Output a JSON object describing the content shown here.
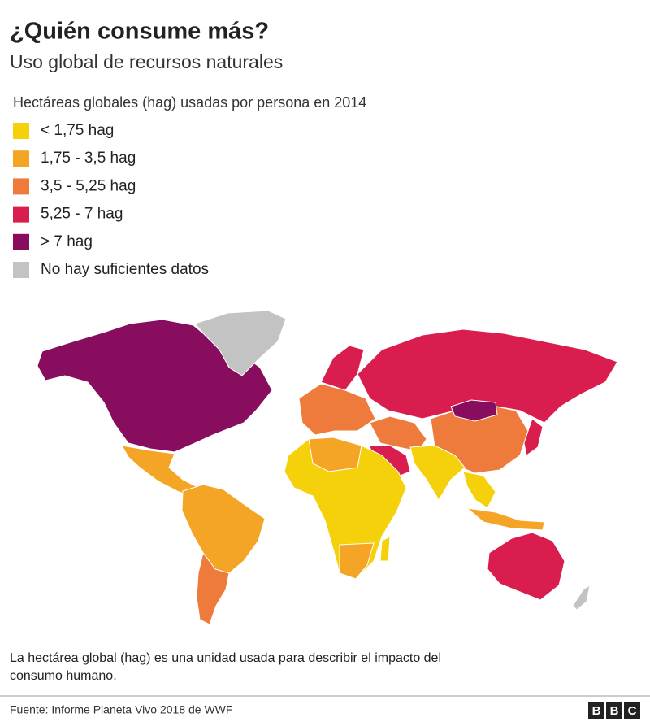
{
  "header": {
    "title": "¿Quién consume más?",
    "subtitle": "Uso global de recursos naturales"
  },
  "legend": {
    "title": "Hectáreas globales (hag) usadas por persona en 2014",
    "items": [
      {
        "label": "< 1,75 hag",
        "color": "#f5d10c"
      },
      {
        "label": "1,75 - 3,5 hag",
        "color": "#f5a525"
      },
      {
        "label": "3,5 - 5,25 hag",
        "color": "#ee7b3b"
      },
      {
        "label": "5,25 - 7 hag",
        "color": "#d91d4f"
      },
      {
        "label": "> 7 hag",
        "color": "#890d5f"
      },
      {
        "label": "No hay suficientes datos",
        "color": "#c3c3c3"
      }
    ]
  },
  "note": [
    "La hectárea global (hag) es una unidad usada para describir el impacto del",
    "consumo humano."
  ],
  "footer": {
    "source": "Fuente: Informe Planeta Vivo 2018 de WWF",
    "brand": [
      "B",
      "B",
      "C"
    ]
  }
}
